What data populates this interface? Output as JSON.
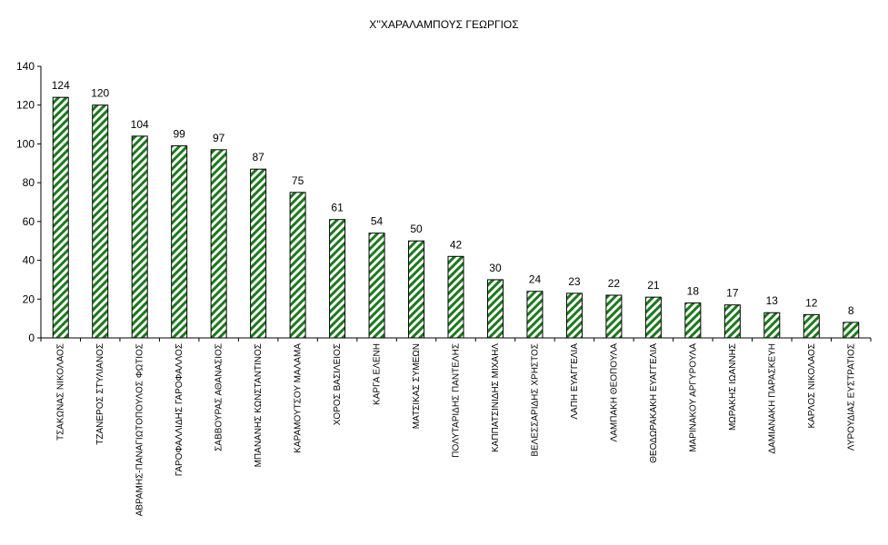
{
  "chart_data": {
    "type": "bar",
    "title": "Χ''ΧΑΡΑΛΑΜΠΟΥΣ ΓΕΩΡΓΙΟΣ",
    "xlabel": "",
    "ylabel": "",
    "ylim": [
      0,
      140
    ],
    "yticks": [
      0,
      20,
      40,
      60,
      80,
      100,
      120,
      140
    ],
    "grid": false,
    "legend": "none",
    "bar_pattern": "diagonal-stripes",
    "colors": {
      "stripe": "#1a7a1a",
      "background": "#ffffff",
      "outline": "#000000"
    },
    "categories": [
      "ΤΣΑΚΩΝΑΣ ΝΙΚΟΛΑΟΣ",
      "ΤΖΑΝΕΡΟΣ ΣΤΥΛΙΑΝΟΣ",
      "ΑΒΡΑΜΗΣ-ΠΑΝΑΓΙΩΤΟΠΟΥΛΟΣ ΦΩΤΙΟΣ",
      "ΓΑΡΟΦΑΛΛΙΔΗΣ ΓΑΡΟΦΑΛΛΟΣ",
      "ΣΑΒΒΟΥΡΑΣ ΑΘΑΝΑΣΙΟΣ",
      "ΜΠΑΝΑΝΗΣ ΚΩΝΣΤΑΝΤΙΝΟΣ",
      "ΚΑΡΑΜΟΥΤΣΟΥ ΜΑΛΑΜΑ",
      "ΧΟΡΟΣ ΒΑΣΙΛΕΙΟΣ",
      "ΚΑΡΓΑ ΕΛΕΝΗ",
      "ΜΑΤΣΙΚΑΣ ΣΥΜΕΩΝ",
      "ΠΟΛΥΤΑΡΙΔΗΣ ΠΑΝΤΕΛΗΣ",
      "ΚΑΠΠΑΤΣΙΝΙΔΗΣ ΜΙΧΑΗΛ",
      "ΒΕΛΕΣΣΑΡΙΔΗΣ ΧΡΗΣΤΟΣ",
      "ΛΑΠΗ ΕΥΑΓΓΕΛΙΑ",
      "ΛΑΜΠΑΚΗ ΘΕΟΠΟΥΛΑ",
      "ΘΕΟΔΩΡΑΚΑΚΗ ΕΥΑΓΓΕΛΙΑ",
      "ΜΑΡΙΝΑΚΟΥ ΑΡΓΥΡΟΥΛΑ",
      "ΜΩΡΑΚΗΣ ΙΩΑΝΝΗΣ",
      "ΔΑΜΙΑΝΑΚΗ ΠΑΡΑΣΚΕΥΗ",
      "ΚΑΡΛΟΣ ΝΙΚΟΛΑΟΣ",
      "ΛΥΡΟΥΔΙΑΣ ΕΥΣΤΡΑΤΙΟΣ"
    ],
    "values": [
      124,
      120,
      104,
      99,
      97,
      87,
      75,
      61,
      54,
      50,
      42,
      30,
      24,
      23,
      22,
      21,
      18,
      17,
      13,
      12,
      8
    ]
  }
}
